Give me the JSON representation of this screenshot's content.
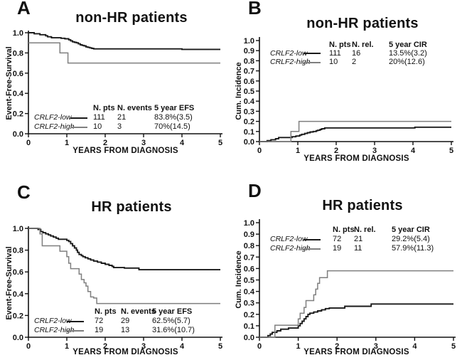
{
  "figure": {
    "background": "#ffffff",
    "text_color": "#111111",
    "curve_colors": {
      "crlf2_low": "#1a1a1a",
      "crlf2_high": "#7f7f7f"
    }
  },
  "panels": [
    {
      "label": "A"
    },
    {
      "label": "B"
    },
    {
      "label": "C"
    },
    {
      "label": "D"
    }
  ],
  "chart_data": [
    {
      "type": "line",
      "subtype": "kaplan-meier-step",
      "title": "non-HR patients",
      "xlabel": "YEARS FROM DIAGNOSIS",
      "ylabel": "Event-Free-Survival",
      "xlim": [
        0,
        5
      ],
      "ylim": [
        0,
        1
      ],
      "xticks": [
        0,
        1,
        2,
        3,
        4,
        5
      ],
      "yticks": [
        0,
        0.2,
        0.4,
        0.6,
        0.8,
        1
      ],
      "grid": false,
      "legend_position": "inside-bottom-left",
      "legend": {
        "headers": [
          "N. pts",
          "N. events",
          "5 year EFS"
        ],
        "rows": [
          {
            "name": "CRLF2-low",
            "color": "#1a1a1a",
            "values": [
              "111",
              "21",
              "83.8%(3.5)"
            ]
          },
          {
            "name": "CRLF2-high",
            "color": "#7f7f7f",
            "values": [
              "10",
              "3",
              "70%(14.5)"
            ]
          }
        ]
      },
      "series": [
        {
          "name": "CRLF2-low",
          "color": "#1a1a1a",
          "width": 1.9,
          "points": [
            [
              0,
              1.0
            ],
            [
              0.15,
              0.99
            ],
            [
              0.3,
              0.98
            ],
            [
              0.45,
              0.97
            ],
            [
              0.5,
              0.96
            ],
            [
              0.6,
              0.95
            ],
            [
              0.85,
              0.945
            ],
            [
              0.95,
              0.94
            ],
            [
              1.05,
              0.93
            ],
            [
              1.1,
              0.92
            ],
            [
              1.15,
              0.91
            ],
            [
              1.2,
              0.905
            ],
            [
              1.25,
              0.9
            ],
            [
              1.3,
              0.89
            ],
            [
              1.35,
              0.88
            ],
            [
              1.4,
              0.875
            ],
            [
              1.45,
              0.87
            ],
            [
              1.5,
              0.86
            ],
            [
              1.55,
              0.855
            ],
            [
              1.6,
              0.85
            ],
            [
              1.65,
              0.845
            ],
            [
              1.7,
              0.84
            ],
            [
              4.0,
              0.835
            ],
            [
              5,
              0.835
            ]
          ]
        },
        {
          "name": "CRLF2-high",
          "color": "#7f7f7f",
          "width": 1.5,
          "points": [
            [
              0,
              0.9
            ],
            [
              0.82,
              0.8
            ],
            [
              1.03,
              0.7
            ],
            [
              5,
              0.7
            ]
          ]
        }
      ]
    },
    {
      "type": "line",
      "subtype": "kaplan-meier-step",
      "title": "non-HR patients",
      "xlabel": "YEARS FROM DIAGNOSIS",
      "ylabel": "Cum. Incidence",
      "xlim": [
        0,
        5
      ],
      "ylim": [
        0,
        1
      ],
      "xticks": [
        0,
        1,
        2,
        3,
        4,
        5
      ],
      "yticks": [
        0,
        0.1,
        0.2,
        0.3,
        0.4,
        0.5,
        0.6,
        0.7,
        0.8,
        0.9,
        1
      ],
      "grid": false,
      "legend_position": "inside-top-left",
      "legend": {
        "headers": [
          "N. pts",
          "N. rel.",
          "5 year CIR"
        ],
        "rows": [
          {
            "name": "CRLF2-low",
            "color": "#1a1a1a",
            "values": [
              "111",
              "16",
              "13.5%(3.2)"
            ]
          },
          {
            "name": "CRLF2-high",
            "color": "#7f7f7f",
            "values": [
              "10",
              "2",
              "20%(12.6)"
            ]
          }
        ]
      },
      "series": [
        {
          "name": "CRLF2-low",
          "color": "#1a1a1a",
          "width": 1.9,
          "points": [
            [
              0,
              0
            ],
            [
              0.2,
              0.009
            ],
            [
              0.3,
              0.018
            ],
            [
              0.42,
              0.028
            ],
            [
              0.5,
              0.04
            ],
            [
              0.85,
              0.048
            ],
            [
              0.95,
              0.055
            ],
            [
              1.05,
              0.065
            ],
            [
              1.1,
              0.072
            ],
            [
              1.18,
              0.08
            ],
            [
              1.25,
              0.088
            ],
            [
              1.32,
              0.095
            ],
            [
              1.4,
              0.1
            ],
            [
              1.48,
              0.108
            ],
            [
              1.52,
              0.112
            ],
            [
              1.58,
              0.12
            ],
            [
              1.62,
              0.127
            ],
            [
              1.7,
              0.135
            ],
            [
              4.05,
              0.142
            ],
            [
              5,
              0.142
            ]
          ]
        },
        {
          "name": "CRLF2-high",
          "color": "#7f7f7f",
          "width": 1.5,
          "points": [
            [
              0,
              0
            ],
            [
              0.82,
              0.1
            ],
            [
              1.03,
              0.2
            ],
            [
              5,
              0.2
            ]
          ]
        }
      ]
    },
    {
      "type": "line",
      "subtype": "kaplan-meier-step",
      "title": "HR patients",
      "xlabel": "YEARS FROM DIAGNOSIS",
      "ylabel": "Event-Free-Survival",
      "xlim": [
        0,
        5
      ],
      "ylim": [
        0,
        1
      ],
      "xticks": [
        0,
        1,
        2,
        3,
        4,
        5
      ],
      "yticks": [
        0,
        0.2,
        0.4,
        0.6,
        0.8,
        1
      ],
      "grid": false,
      "legend_position": "inside-bottom-left",
      "legend": {
        "headers": [
          "N. pts",
          "N. events",
          "5 year EFS"
        ],
        "rows": [
          {
            "name": "CRLF2-low",
            "color": "#1a1a1a",
            "values": [
              "72",
              "29",
              "62.5%(5.7)"
            ]
          },
          {
            "name": "CRLF2-high",
            "color": "#7f7f7f",
            "values": [
              "19",
              "13",
              "31.6%(10.7)"
            ]
          }
        ]
      },
      "series": [
        {
          "name": "CRLF2-low",
          "color": "#1a1a1a",
          "width": 1.9,
          "points": [
            [
              0,
              1.0
            ],
            [
              0.25,
              0.99
            ],
            [
              0.32,
              0.97
            ],
            [
              0.38,
              0.96
            ],
            [
              0.45,
              0.95
            ],
            [
              0.52,
              0.94
            ],
            [
              0.58,
              0.93
            ],
            [
              0.65,
              0.92
            ],
            [
              0.72,
              0.91
            ],
            [
              0.78,
              0.9
            ],
            [
              1.0,
              0.89
            ],
            [
              1.05,
              0.88
            ],
            [
              1.1,
              0.86
            ],
            [
              1.15,
              0.84
            ],
            [
              1.2,
              0.82
            ],
            [
              1.25,
              0.8
            ],
            [
              1.28,
              0.78
            ],
            [
              1.32,
              0.76
            ],
            [
              1.38,
              0.75
            ],
            [
              1.42,
              0.74
            ],
            [
              1.48,
              0.73
            ],
            [
              1.55,
              0.72
            ],
            [
              1.62,
              0.71
            ],
            [
              1.7,
              0.7
            ],
            [
              1.8,
              0.69
            ],
            [
              1.9,
              0.68
            ],
            [
              2.0,
              0.67
            ],
            [
              2.1,
              0.66
            ],
            [
              2.18,
              0.65
            ],
            [
              2.22,
              0.64
            ],
            [
              2.5,
              0.635
            ],
            [
              2.88,
              0.62
            ],
            [
              5,
              0.62
            ]
          ]
        },
        {
          "name": "CRLF2-high",
          "color": "#7f7f7f",
          "width": 1.5,
          "points": [
            [
              0,
              1.0
            ],
            [
              0.3,
              0.95
            ],
            [
              0.36,
              0.84
            ],
            [
              0.82,
              0.79
            ],
            [
              1.0,
              0.74
            ],
            [
              1.05,
              0.68
            ],
            [
              1.1,
              0.63
            ],
            [
              1.32,
              0.58
            ],
            [
              1.38,
              0.53
            ],
            [
              1.45,
              0.5
            ],
            [
              1.5,
              0.47
            ],
            [
              1.55,
              0.42
            ],
            [
              1.62,
              0.37
            ],
            [
              1.7,
              0.36
            ],
            [
              1.78,
              0.31
            ],
            [
              5,
              0.31
            ]
          ]
        }
      ]
    },
    {
      "type": "line",
      "subtype": "kaplan-meier-step",
      "title": "HR patients",
      "xlabel": "YEARS FROM DIAGNOSIS",
      "ylabel": "Cum. Incidence",
      "xlim": [
        0,
        5
      ],
      "ylim": [
        0,
        1
      ],
      "xticks": [
        0,
        1,
        2,
        3,
        4,
        5
      ],
      "yticks": [
        0,
        0.1,
        0.2,
        0.3,
        0.4,
        0.5,
        0.6,
        0.7,
        0.8,
        0.9,
        1
      ],
      "grid": false,
      "legend_position": "inside-top-left",
      "legend": {
        "headers": [
          "N. pts",
          "N. rel.",
          "5 year CIR"
        ],
        "rows": [
          {
            "name": "CRLF2-low",
            "color": "#1a1a1a",
            "values": [
              "72",
              "21",
              "29.2%(5.4)"
            ]
          },
          {
            "name": "CRLF2-high",
            "color": "#7f7f7f",
            "values": [
              "19",
              "11",
              "57.9%(11.3)"
            ]
          }
        ]
      },
      "series": [
        {
          "name": "CRLF2-low",
          "color": "#1a1a1a",
          "width": 1.9,
          "points": [
            [
              0,
              0
            ],
            [
              0.22,
              0.014
            ],
            [
              0.28,
              0.028
            ],
            [
              0.33,
              0.042
            ],
            [
              0.45,
              0.056
            ],
            [
              0.55,
              0.07
            ],
            [
              0.75,
              0.08
            ],
            [
              1.0,
              0.1
            ],
            [
              1.05,
              0.12
            ],
            [
              1.1,
              0.14
            ],
            [
              1.15,
              0.16
            ],
            [
              1.2,
              0.18
            ],
            [
              1.25,
              0.2
            ],
            [
              1.3,
              0.21
            ],
            [
              1.4,
              0.22
            ],
            [
              1.5,
              0.23
            ],
            [
              1.6,
              0.24
            ],
            [
              1.7,
              0.25
            ],
            [
              1.8,
              0.255
            ],
            [
              2.2,
              0.27
            ],
            [
              2.88,
              0.29
            ],
            [
              5,
              0.29
            ]
          ]
        },
        {
          "name": "CRLF2-high",
          "color": "#7f7f7f",
          "width": 1.5,
          "points": [
            [
              0,
              0
            ],
            [
              0.4,
              0.105
            ],
            [
              1.0,
              0.16
            ],
            [
              1.05,
              0.21
            ],
            [
              1.15,
              0.26
            ],
            [
              1.2,
              0.32
            ],
            [
              1.4,
              0.37
            ],
            [
              1.45,
              0.42
            ],
            [
              1.5,
              0.47
            ],
            [
              1.55,
              0.52
            ],
            [
              1.75,
              0.58
            ],
            [
              5,
              0.58
            ]
          ]
        }
      ]
    }
  ]
}
